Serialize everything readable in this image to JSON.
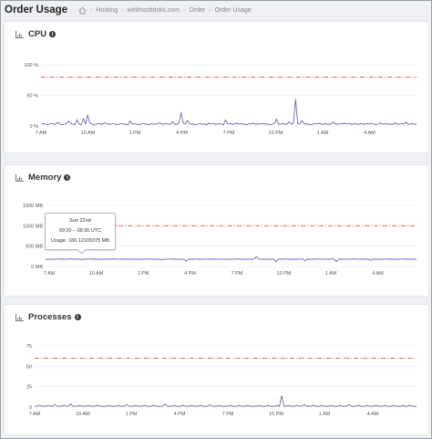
{
  "header": {
    "title": "Order Usage",
    "breadcrumbs": [
      "Hosting",
      "webhosttricks.com",
      "Order",
      "Order Usage"
    ]
  },
  "colors": {
    "series": "#6a6aa8",
    "threshold": "#d9534f"
  },
  "charts": [
    {
      "key": "cpu",
      "title": "CPU",
      "chart_data": {
        "type": "line",
        "title": "CPU",
        "yticks": [
          "100 %",
          "50 %",
          "0 %"
        ],
        "ylim": [
          0,
          100
        ],
        "threshold": 80,
        "xticks": [
          "7 AM",
          "10 AM",
          "1 PM",
          "4 PM",
          "7 PM",
          "10 PM",
          "1 AM",
          "4 AM"
        ],
        "values": [
          3,
          4,
          3,
          2,
          3,
          4,
          3,
          3,
          6,
          3,
          2,
          3,
          4,
          8,
          4,
          3,
          2,
          10,
          3,
          2,
          12,
          3,
          18,
          5,
          3,
          2,
          3,
          4,
          3,
          3,
          5,
          4,
          3,
          3,
          4,
          3,
          2,
          3,
          4,
          3,
          3,
          2,
          8,
          3,
          4,
          3,
          2,
          3,
          4,
          3,
          3,
          2,
          4,
          3,
          3,
          4,
          5,
          3,
          3,
          4,
          3,
          3,
          7,
          3,
          3,
          4,
          22,
          5,
          3,
          9,
          4,
          3,
          3,
          2,
          3,
          4,
          3,
          3,
          2,
          5,
          3,
          4,
          3,
          3,
          4,
          3,
          2,
          10,
          3,
          4,
          3,
          3,
          5,
          3,
          4,
          3,
          3,
          2,
          4,
          3,
          5,
          3,
          3,
          4,
          3,
          4,
          3,
          3,
          2,
          3,
          4,
          11,
          3,
          3,
          4,
          3,
          3,
          7,
          3,
          4,
          44,
          4,
          3,
          9,
          4,
          3,
          3,
          2,
          3,
          4,
          3,
          5,
          3,
          3,
          4,
          3,
          3,
          4,
          6,
          3,
          3,
          4,
          3,
          5,
          3,
          4,
          3,
          3,
          4,
          3,
          3,
          4,
          3,
          3,
          4,
          3,
          4,
          3,
          2,
          3,
          5,
          3,
          3,
          4,
          3,
          3,
          3,
          5,
          3,
          3,
          4,
          3,
          6,
          3,
          3,
          4,
          3,
          3
        ]
      }
    },
    {
      "key": "memory",
      "title": "Memory",
      "chart_data": {
        "type": "line",
        "title": "Memory",
        "yticks": [
          "1500 MB",
          "1000 MB",
          "500 MB",
          "0 MB"
        ],
        "ylim": [
          0,
          1500
        ],
        "threshold": 1000,
        "xticks": [
          "7 AM",
          "10 AM",
          "1 PM",
          "4 PM",
          "7 PM",
          "10 PM",
          "1 AM",
          "4 AM"
        ],
        "values": [
          180,
          178,
          182,
          175,
          180,
          185,
          178,
          182,
          180,
          176,
          190,
          180,
          178,
          185,
          180,
          175,
          182,
          180,
          185,
          178,
          180,
          182,
          180,
          176,
          184,
          180,
          178,
          182,
          190,
          180,
          176,
          182,
          180,
          185,
          178,
          180,
          176,
          184,
          180,
          182,
          178,
          180,
          185,
          180,
          176,
          182,
          180,
          178,
          160,
          180,
          175,
          182,
          185,
          178,
          182,
          180,
          176,
          180,
          130,
          182,
          180,
          178,
          185,
          180,
          182,
          176,
          180,
          185,
          178,
          182,
          180,
          176,
          180,
          184,
          182,
          178,
          180,
          176,
          180,
          185,
          178,
          182,
          180,
          176,
          182,
          180,
          185,
          240,
          182,
          178,
          180,
          176,
          182,
          180,
          185,
          120,
          182,
          178,
          180,
          185,
          176,
          182,
          180,
          178,
          180,
          182,
          185,
          140,
          180,
          176,
          182,
          180,
          178,
          185,
          180,
          176,
          182,
          180,
          185,
          178,
          120,
          182,
          180,
          176,
          180,
          182,
          178,
          185,
          180,
          176,
          182,
          180,
          178,
          185,
          150,
          182,
          180,
          178,
          176,
          180,
          182,
          185,
          178,
          180,
          176,
          182,
          180,
          185,
          178,
          182,
          180,
          176,
          184,
          180
        ]
      },
      "tooltip": {
        "date": "Sun 22nd",
        "time": "09:20 – 09:30 UTC",
        "usage": "Usage: 180.12109375 MB"
      }
    },
    {
      "key": "processes",
      "title": "Processes",
      "chart_data": {
        "type": "line",
        "title": "Processes",
        "yticks": [
          "75",
          "50",
          "25",
          "0"
        ],
        "ylim": [
          0,
          75
        ],
        "threshold": 60,
        "xticks": [
          "7 AM",
          "10 AM",
          "1 PM",
          "4 PM",
          "7 PM",
          "10 PM",
          "1 AM",
          "4 AM"
        ],
        "values": [
          1,
          1,
          2,
          1,
          1,
          1,
          2,
          1,
          1,
          3,
          1,
          1,
          1,
          2,
          1,
          1,
          4,
          1,
          1,
          1,
          2,
          1,
          1,
          1,
          2,
          1,
          1,
          1,
          2,
          1,
          1,
          1,
          1,
          2,
          1,
          1,
          1,
          2,
          1,
          1,
          1,
          3,
          1,
          1,
          1,
          2,
          1,
          1,
          1,
          2,
          1,
          1,
          1,
          2,
          1,
          1,
          1,
          1,
          4,
          1,
          1,
          1,
          2,
          1,
          1,
          1,
          2,
          1,
          1,
          1,
          2,
          1,
          1,
          1,
          2,
          1,
          1,
          1,
          3,
          1,
          1,
          1,
          2,
          1,
          1,
          1,
          1,
          2,
          1,
          1,
          1,
          2,
          1,
          1,
          1,
          2,
          1,
          1,
          1,
          1,
          2,
          1,
          1,
          1,
          2,
          1,
          1,
          1,
          2,
          1,
          14,
          1,
          1,
          2,
          1,
          1,
          1,
          2,
          1,
          1,
          3,
          1,
          1,
          1,
          2,
          1,
          1,
          1,
          2,
          1,
          1,
          1,
          2,
          1,
          1,
          1,
          2,
          1,
          1,
          1,
          3,
          1,
          1,
          1,
          2,
          1,
          1,
          1,
          2,
          1,
          1,
          1,
          2,
          1,
          1,
          1,
          2,
          1,
          1,
          1,
          2,
          1,
          1,
          1,
          2,
          1,
          1,
          2,
          1,
          1,
          1
        ]
      }
    }
  ]
}
